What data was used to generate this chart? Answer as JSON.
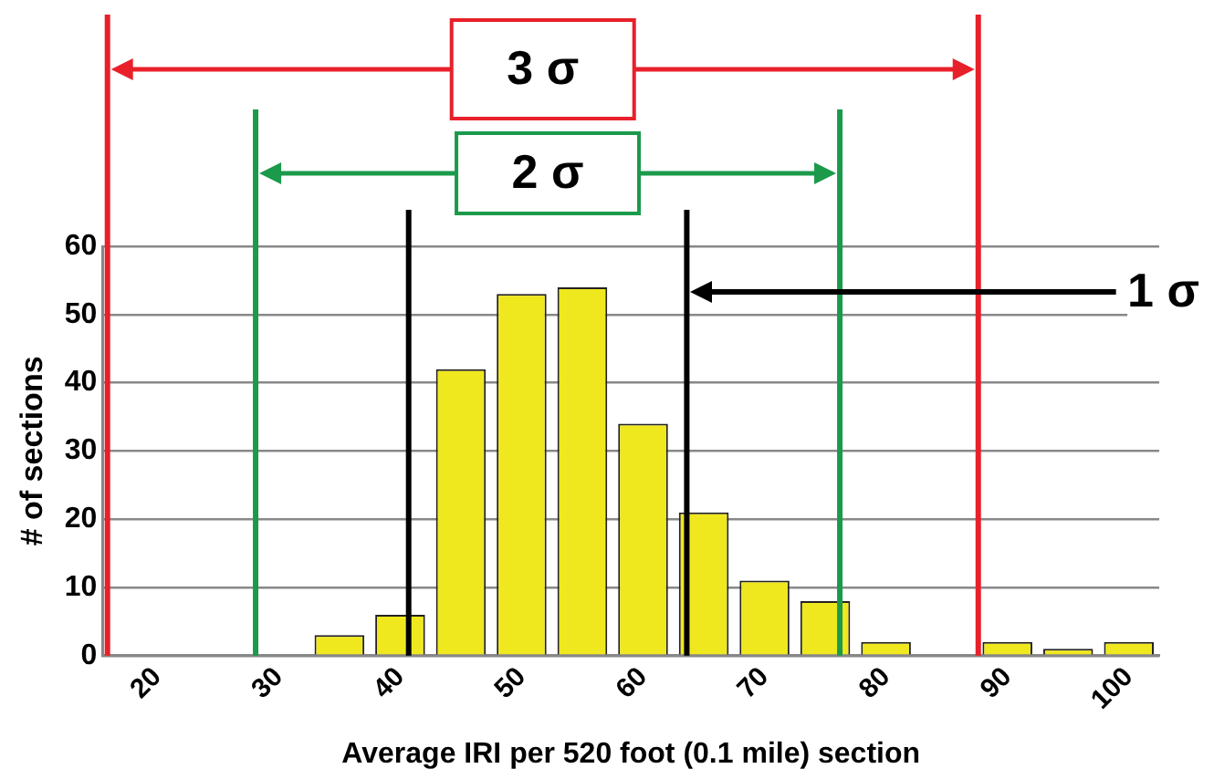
{
  "chart_data": {
    "type": "histogram",
    "xlabel": "Average IRI per 520 foot (0.1 mile) section",
    "ylabel": "# of sections",
    "bins": [
      17.5,
      22.5,
      27.5,
      32.5,
      37.5,
      42.5,
      47.5,
      52.5,
      57.5,
      62.5,
      67.5,
      72.5,
      77.5,
      82.5,
      87.5,
      92.5,
      97.5,
      102.5
    ],
    "values": [
      0,
      0,
      0,
      3,
      6,
      42,
      53,
      54,
      34,
      21,
      11,
      8,
      2,
      0,
      2,
      1,
      2
    ],
    "color": "#f0e81e",
    "xlim": [
      15.5,
      102.5
    ],
    "xticks": [
      20,
      30,
      40,
      50,
      60,
      70,
      80,
      90,
      100
    ],
    "ylim": [
      0,
      60
    ],
    "yticks": [
      0,
      10,
      20,
      30,
      40,
      50,
      60
    ],
    "grid": "y",
    "ref_lines": [
      {
        "axis": "x",
        "value": 15.9,
        "color": "#e8202a"
      },
      {
        "axis": "x",
        "value": 87.6,
        "color": "#e8202a"
      },
      {
        "axis": "x",
        "value": 28.1,
        "color": "#1a9a4a"
      },
      {
        "axis": "x",
        "value": 76.2,
        "color": "#1a9a4a"
      },
      {
        "axis": "x",
        "value": 40.7,
        "color": "#000000"
      },
      {
        "axis": "x",
        "value": 63.6,
        "color": "#000000"
      }
    ],
    "annotations": [
      "3 σ",
      "2 σ",
      "1 σ"
    ],
    "legend": false
  }
}
